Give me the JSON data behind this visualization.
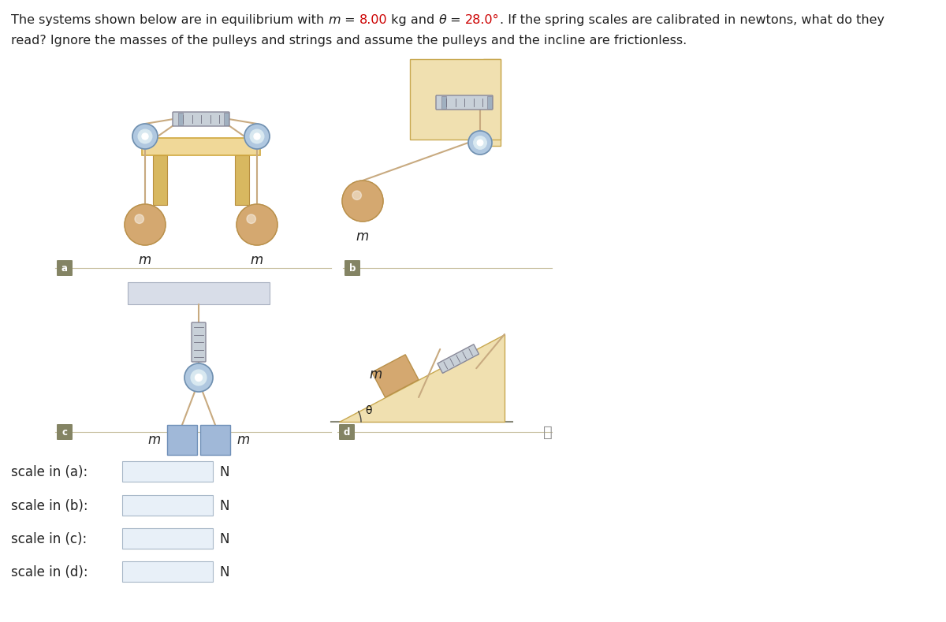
{
  "bg_color": "#ffffff",
  "mass_ball_color": "#d4a870",
  "mass_ball_outline": "#b8904a",
  "mass_box_color": "#a0b8d8",
  "mass_box_outline": "#7090b8",
  "table_top_color": "#f0d898",
  "table_top_edge": "#d0a840",
  "table_leg_color": "#d8b860",
  "table_leg_edge": "#b89040",
  "pulley_outer_color": "#b0c8e0",
  "pulley_inner_color": "#ffffff",
  "pulley_outline": "#7090b0",
  "scale_body_color": "#c8d0d8",
  "scale_body_outline": "#888898",
  "scale_end_color": "#a0b0c0",
  "rope_color": "#c8aa80",
  "wall_color": "#f0e0b0",
  "wall_outline": "#c8a850",
  "incline_color": "#f0e0b0",
  "incline_outline": "#c8a850",
  "ceiling_color": "#d8dde8",
  "ceiling_outline": "#a8b0c0",
  "section_bg": "#848464",
  "section_fg": "#ffffff",
  "divider_color": "#c8c0a0",
  "input_bg": "#e8f0f8",
  "input_outline": "#a8b8c8",
  "text_color": "#222222",
  "red_color": "#cc0000",
  "info_color": "#909090",
  "fig_w": 12.0,
  "fig_h": 7.89,
  "title1_parts": [
    [
      "The systems shown below are in equilibrium with ",
      "normal",
      false
    ],
    [
      "m",
      "italic",
      false
    ],
    [
      " = ",
      "normal",
      false
    ],
    [
      "8.00",
      "normal",
      true
    ],
    [
      " kg and ",
      "normal",
      false
    ],
    [
      "θ",
      "italic",
      false
    ],
    [
      " = ",
      "normal",
      false
    ],
    [
      "28.0°",
      "normal",
      true
    ],
    [
      ". If the spring scales are calibrated in newtons, what do they",
      "normal",
      false
    ]
  ],
  "title2": "read? Ignore the masses of the pulleys and strings and assume the pulleys and the incline are frictionless.",
  "label_texts": [
    "scale in (a):",
    "scale in (b):",
    "scale in (c):",
    "scale in (d):"
  ]
}
